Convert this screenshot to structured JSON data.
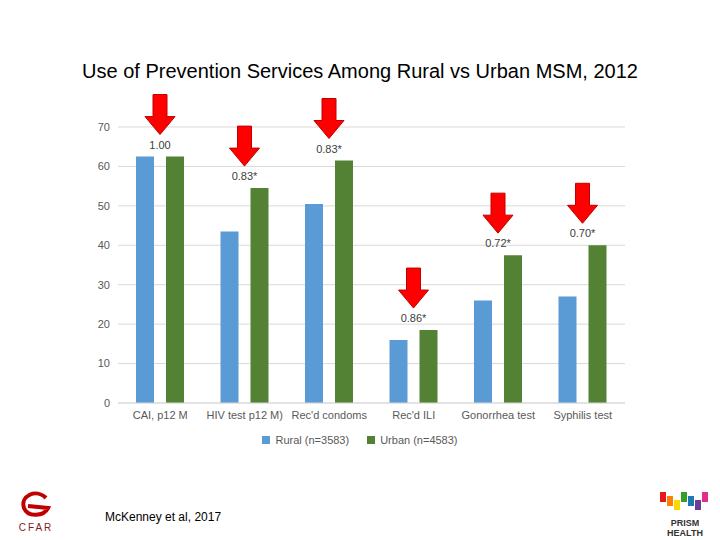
{
  "chart_data": {
    "type": "bar",
    "title": "Use of Prevention Services Among Rural vs Urban MSM, 2012",
    "categories": [
      "CAI, p12 M",
      "HIV test p12 M)",
      "Rec'd condoms",
      "Rec'd ILI",
      "Gonorrhea test",
      "Syphilis test"
    ],
    "series": [
      {
        "name": "Rural (n=3583)",
        "color": "#5b9bd5",
        "values": [
          62.5,
          43.5,
          50.5,
          16,
          26,
          27
        ]
      },
      {
        "name": "Urban (n=4583)",
        "color": "#548235",
        "values": [
          62.5,
          54.5,
          61.5,
          18.5,
          37.5,
          40
        ]
      }
    ],
    "ylim": [
      0,
      70
    ],
    "yticks": [
      0,
      10,
      20,
      30,
      40,
      50,
      60,
      70
    ],
    "grid": true,
    "legend": "bottom",
    "annotations": [
      {
        "category": "CAI, p12 M",
        "text": "1.00"
      },
      {
        "category": "HIV test p12 M)",
        "text": "0.83*"
      },
      {
        "category": "Rec'd condoms",
        "text": "0.83*"
      },
      {
        "category": "Rec'd ILI",
        "text": "0.86*"
      },
      {
        "category": "Gonorrhea test",
        "text": "0.72*"
      },
      {
        "category": "Syphilis test",
        "text": "0.70*"
      }
    ],
    "source": "McKenney et al, 2017",
    "logos": [
      "CFAR",
      "PRISM HEALTH"
    ]
  }
}
